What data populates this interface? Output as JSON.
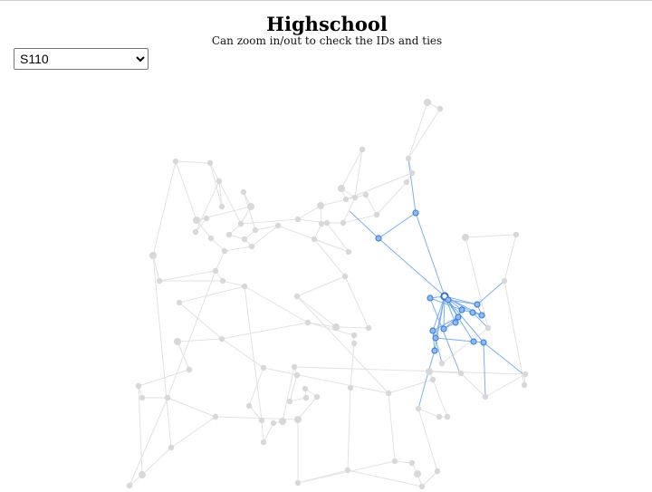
{
  "header": {
    "title": "Highschool",
    "subtitle": "Can zoom in/out to check the IDs and ties"
  },
  "selector": {
    "selected": "S110",
    "options": [
      "S110"
    ]
  },
  "colors": {
    "highlight_edge": "#6ea7ec",
    "highlight_node": "#8fbaf4",
    "background_node": "#d8d8d8",
    "background_edge": "#e2e2e2"
  }
}
